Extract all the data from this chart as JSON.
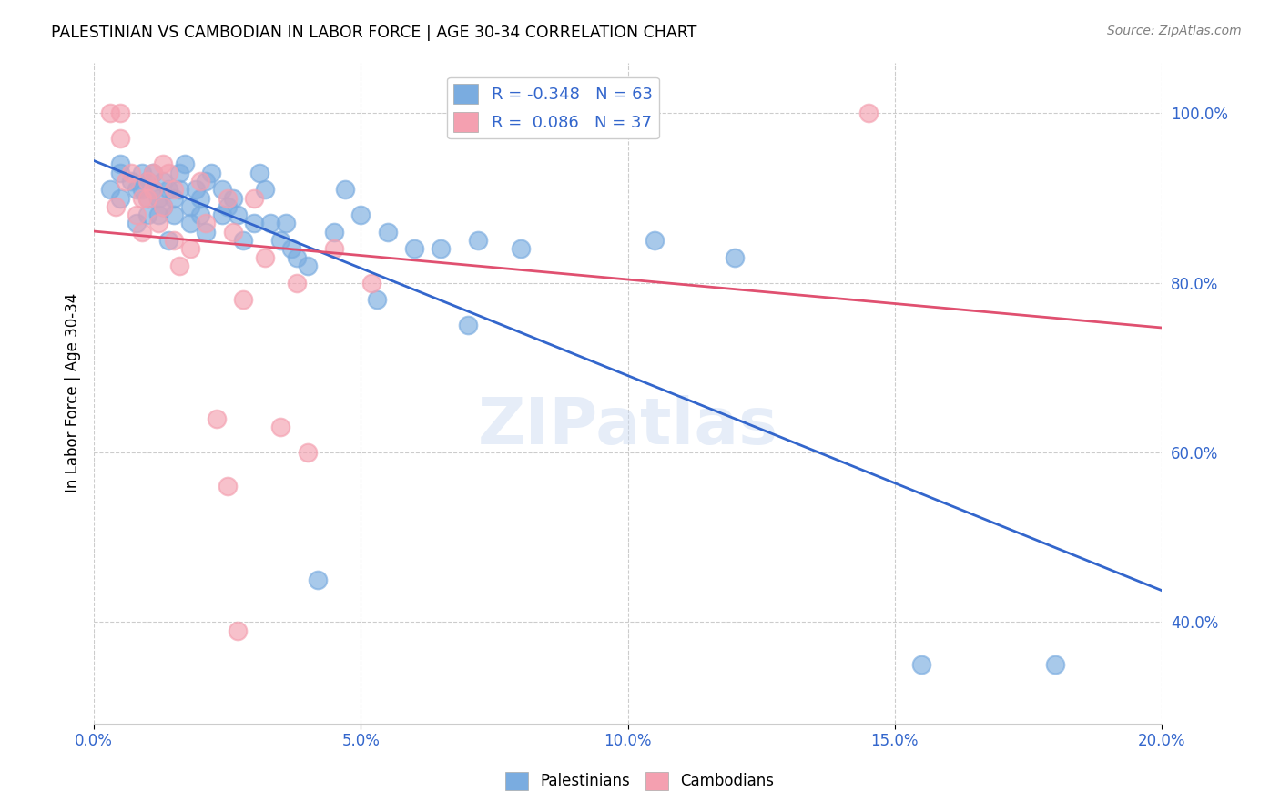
{
  "title": "PALESTINIAN VS CAMBODIAN IN LABOR FORCE | AGE 30-34 CORRELATION CHART",
  "source": "Source: ZipAtlas.com",
  "ylabel": "In Labor Force | Age 30-34",
  "xlabel_ticks": [
    "0.0%",
    "5.0%",
    "10.0%",
    "15.0%",
    "20.0%"
  ],
  "xlabel_vals": [
    0.0,
    5.0,
    10.0,
    15.0,
    20.0
  ],
  "ylabel_ticks": [
    "40.0%",
    "60.0%",
    "80.0%",
    "100.0%"
  ],
  "ylabel_vals": [
    40.0,
    60.0,
    80.0,
    100.0
  ],
  "xmin": 0.0,
  "xmax": 20.0,
  "ymin": 28.0,
  "ymax": 106.0,
  "blue_color": "#7aace0",
  "pink_color": "#f4a0b0",
  "blue_line_color": "#3366cc",
  "pink_line_color": "#e05070",
  "legend_blue_label": "Palestinians",
  "legend_pink_label": "Cambodians",
  "R_blue": -0.348,
  "N_blue": 63,
  "R_pink": 0.086,
  "N_pink": 37,
  "watermark": "ZIPatlas",
  "blue_points_x": [
    0.3,
    0.5,
    0.5,
    0.5,
    0.7,
    0.8,
    0.8,
    0.9,
    0.9,
    1.0,
    1.0,
    1.0,
    1.1,
    1.1,
    1.2,
    1.2,
    1.3,
    1.3,
    1.4,
    1.4,
    1.5,
    1.5,
    1.6,
    1.6,
    1.7,
    1.8,
    1.8,
    1.9,
    2.0,
    2.0,
    2.1,
    2.1,
    2.2,
    2.4,
    2.4,
    2.5,
    2.6,
    2.7,
    2.8,
    3.0,
    3.1,
    3.2,
    3.3,
    3.5,
    3.6,
    3.7,
    3.8,
    4.0,
    4.2,
    4.5,
    4.7,
    5.0,
    5.3,
    5.5,
    6.0,
    6.5,
    7.0,
    7.2,
    8.0,
    10.5,
    12.0,
    15.5,
    18.0
  ],
  "blue_points_y": [
    91,
    94,
    90,
    93,
    92,
    87,
    91,
    93,
    91,
    90,
    88,
    92,
    93,
    91,
    88,
    90,
    92,
    89,
    85,
    91,
    90,
    88,
    93,
    91,
    94,
    87,
    89,
    91,
    90,
    88,
    86,
    92,
    93,
    88,
    91,
    89,
    90,
    88,
    85,
    87,
    93,
    91,
    87,
    85,
    87,
    84,
    83,
    82,
    45,
    86,
    91,
    88,
    78,
    86,
    84,
    84,
    75,
    85,
    84,
    85,
    83,
    35,
    35
  ],
  "pink_points_x": [
    0.3,
    0.5,
    0.5,
    0.7,
    0.8,
    0.9,
    1.0,
    1.0,
    1.1,
    1.2,
    1.3,
    1.4,
    1.5,
    1.5,
    1.6,
    1.8,
    2.0,
    2.1,
    2.3,
    2.5,
    2.6,
    3.0,
    3.2,
    3.5,
    4.0,
    4.5,
    0.4,
    0.6,
    0.9,
    1.1,
    1.3,
    2.8,
    3.8,
    5.2,
    14.5,
    2.5,
    2.7
  ],
  "pink_points_y": [
    100,
    100,
    97,
    93,
    88,
    90,
    92,
    90,
    93,
    87,
    89,
    93,
    91,
    85,
    82,
    84,
    92,
    87,
    64,
    90,
    86,
    90,
    83,
    63,
    60,
    84,
    89,
    92,
    86,
    91,
    94,
    78,
    80,
    80,
    100,
    56,
    39
  ]
}
